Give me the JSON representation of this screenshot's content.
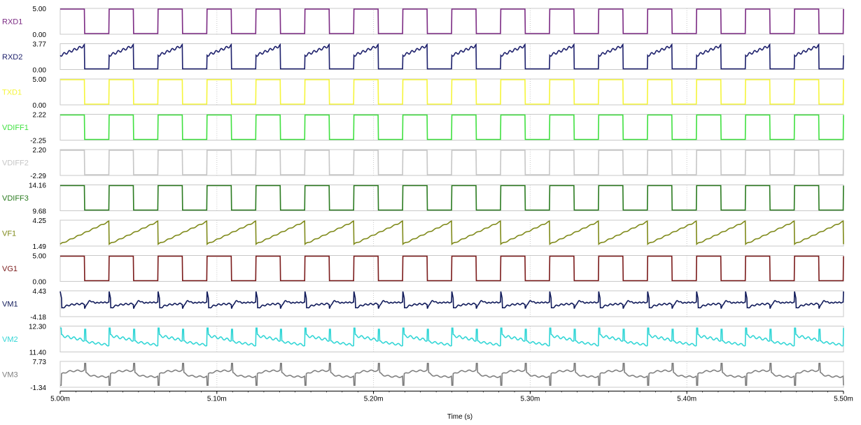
{
  "chart_data": {
    "type": "line",
    "xlabel": "Time (s)",
    "xlim": [
      5.0,
      5.5
    ],
    "x_unit_suffix": "m",
    "xticks": [
      {
        "value": 5.0,
        "label": "5.00m"
      },
      {
        "value": 5.1,
        "label": "5.10m"
      },
      {
        "value": 5.2,
        "label": "5.20m"
      },
      {
        "value": 5.3,
        "label": "5.30m"
      },
      {
        "value": 5.4,
        "label": "5.40m"
      },
      {
        "value": 5.5,
        "label": "5.50m"
      }
    ],
    "period_ms": 0.03125,
    "grid": "dotted vertical lines at each x tick",
    "channels": [
      {
        "name": "RXD1",
        "color": "#7b2a83",
        "ymax": 5.0,
        "ymin": 0.0,
        "ymax_label": "5.00",
        "ymin_label": "0.00",
        "shape": "square"
      },
      {
        "name": "RXD2",
        "color": "#1c1f6b",
        "ymax": 3.77,
        "ymin": 0.0,
        "ymax_label": "3.77",
        "ymin_label": "0.00",
        "shape": "pulse_ramp"
      },
      {
        "name": "TXD1",
        "color": "#f5f53a",
        "ymax": 5.0,
        "ymin": 0.0,
        "ymax_label": "5.00",
        "ymin_label": "0.00",
        "shape": "square_inverted"
      },
      {
        "name": "VDIFF1",
        "color": "#3fe03f",
        "ymax": 2.22,
        "ymin": -2.25,
        "ymax_label": "2.22",
        "ymin_label": "-2.25",
        "shape": "square"
      },
      {
        "name": "VDIFF2",
        "color": "#c6c6c6",
        "ymax": 2.2,
        "ymin": -2.29,
        "ymax_label": "2.20",
        "ymin_label": "-2.29",
        "shape": "square"
      },
      {
        "name": "VDIFF3",
        "color": "#2a7a1f",
        "ymax": 14.16,
        "ymin": 9.68,
        "ymax_label": "14.16",
        "ymin_label": "9.68",
        "shape": "square"
      },
      {
        "name": "VF1",
        "color": "#7f8a1a",
        "ymax": 4.25,
        "ymin": 1.49,
        "ymax_label": "4.25",
        "ymin_label": "1.49",
        "shape": "sawtooth"
      },
      {
        "name": "VG1",
        "color": "#7a1a1a",
        "ymax": 5.0,
        "ymin": 0.0,
        "ymax_label": "5.00",
        "ymin_label": "0.00",
        "shape": "square"
      },
      {
        "name": "VM1",
        "color": "#101a5a",
        "ymax": 4.43,
        "ymin": -4.18,
        "ymax_label": "4.43",
        "ymin_label": "-4.18",
        "shape": "spike"
      },
      {
        "name": "VM2",
        "color": "#33d6d6",
        "ymax": 12.3,
        "ymin": 11.4,
        "ymax_label": "12.30",
        "ymin_label": "11.40",
        "shape": "spike_decay"
      },
      {
        "name": "VM3",
        "color": "#808080",
        "ymax": 7.73,
        "ymin": -1.34,
        "ymax_label": "7.73",
        "ymin_label": "-1.34",
        "shape": "spike_down"
      }
    ]
  }
}
